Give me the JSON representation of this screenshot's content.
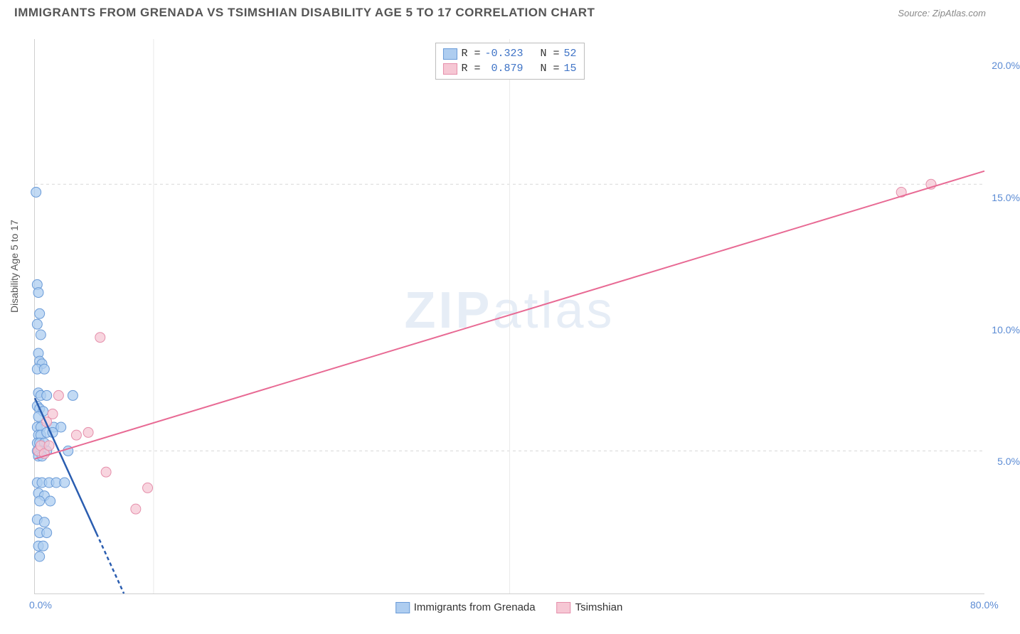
{
  "header": {
    "title": "IMMIGRANTS FROM GRENADA VS TSIMSHIAN DISABILITY AGE 5 TO 17 CORRELATION CHART",
    "source_label": "Source:",
    "source_value": "ZipAtlas.com"
  },
  "chart": {
    "type": "scatter",
    "ylabel": "Disability Age 5 to 17",
    "xlim": [
      0,
      80
    ],
    "ylim": [
      0,
      21
    ],
    "xtick_values": [
      0,
      80
    ],
    "xtick_labels": [
      "0.0%",
      "80.0%"
    ],
    "ytick_values": [
      5,
      10,
      15,
      20
    ],
    "ytick_labels": [
      "5.0%",
      "10.0%",
      "15.0%",
      "20.0%"
    ],
    "grid_x_values": [
      10,
      40
    ],
    "grid_y_values": [
      5.4,
      15.5
    ],
    "background_color": "#ffffff",
    "grid_color": "#d8d8d8",
    "axis_color": "#cfcfcf",
    "tick_label_color": "#5b8bd4",
    "watermark_text_bold": "ZIP",
    "watermark_text_rest": "atlas",
    "series": [
      {
        "name": "Immigrants from Grenada",
        "label": "Immigrants from Grenada",
        "marker_color": "#aecdf0",
        "marker_border": "#6a9bd8",
        "marker_opacity": 0.75,
        "marker_radius": 7,
        "line_color": "#2a5db0",
        "line_width": 2.5,
        "r_value": "-0.323",
        "n_value": "52",
        "trend": {
          "x1": 0,
          "y1": 7.4,
          "x2": 7.5,
          "y2": 0.0,
          "dashed_from_x": 5.2
        },
        "points": [
          [
            0.1,
            15.2
          ],
          [
            0.2,
            11.7
          ],
          [
            0.3,
            11.4
          ],
          [
            0.4,
            10.6
          ],
          [
            0.2,
            10.2
          ],
          [
            0.5,
            9.8
          ],
          [
            0.3,
            9.1
          ],
          [
            0.4,
            8.8
          ],
          [
            0.6,
            8.7
          ],
          [
            0.2,
            8.5
          ],
          [
            0.8,
            8.5
          ],
          [
            0.3,
            7.6
          ],
          [
            0.5,
            7.5
          ],
          [
            1.0,
            7.5
          ],
          [
            3.2,
            7.5
          ],
          [
            0.2,
            7.1
          ],
          [
            0.4,
            7.0
          ],
          [
            0.7,
            6.9
          ],
          [
            0.3,
            6.7
          ],
          [
            0.2,
            6.3
          ],
          [
            0.5,
            6.3
          ],
          [
            1.6,
            6.3
          ],
          [
            2.2,
            6.3
          ],
          [
            0.3,
            6.0
          ],
          [
            0.5,
            6.0
          ],
          [
            1.0,
            6.1
          ],
          [
            1.5,
            6.1
          ],
          [
            0.2,
            5.7
          ],
          [
            0.4,
            5.7
          ],
          [
            0.8,
            5.7
          ],
          [
            0.2,
            5.4
          ],
          [
            0.5,
            5.4
          ],
          [
            1.0,
            5.4
          ],
          [
            0.3,
            5.2
          ],
          [
            0.6,
            5.2
          ],
          [
            2.8,
            5.4
          ],
          [
            0.2,
            4.2
          ],
          [
            0.6,
            4.2
          ],
          [
            1.2,
            4.2
          ],
          [
            1.8,
            4.2
          ],
          [
            2.5,
            4.2
          ],
          [
            0.3,
            3.8
          ],
          [
            0.8,
            3.7
          ],
          [
            0.4,
            3.5
          ],
          [
            1.3,
            3.5
          ],
          [
            0.2,
            2.8
          ],
          [
            0.8,
            2.7
          ],
          [
            0.4,
            2.3
          ],
          [
            1.0,
            2.3
          ],
          [
            0.3,
            1.8
          ],
          [
            0.7,
            1.8
          ],
          [
            0.4,
            1.4
          ]
        ]
      },
      {
        "name": "Tsimshian",
        "label": "Tsimshian",
        "marker_color": "#f6c7d4",
        "marker_border": "#e58fab",
        "marker_opacity": 0.75,
        "marker_radius": 7,
        "line_color": "#e86a94",
        "line_width": 2,
        "r_value": "0.879",
        "n_value": "15",
        "trend": {
          "x1": 0,
          "y1": 5.1,
          "x2": 80,
          "y2": 16.0
        },
        "points": [
          [
            0.3,
            5.4
          ],
          [
            0.5,
            5.6
          ],
          [
            0.8,
            5.3
          ],
          [
            1.2,
            5.6
          ],
          [
            1.5,
            6.8
          ],
          [
            2.0,
            7.5
          ],
          [
            3.5,
            6.0
          ],
          [
            4.5,
            6.1
          ],
          [
            5.5,
            9.7
          ],
          [
            6.0,
            4.6
          ],
          [
            8.5,
            3.2
          ],
          [
            9.5,
            4.0
          ],
          [
            73,
            15.2
          ],
          [
            75.5,
            15.5
          ],
          [
            1.0,
            6.5
          ]
        ]
      }
    ],
    "bottom_legend": [
      {
        "label": "Immigrants from Grenada",
        "swatch": "blue"
      },
      {
        "label": "Tsimshian",
        "swatch": "pink"
      }
    ]
  }
}
